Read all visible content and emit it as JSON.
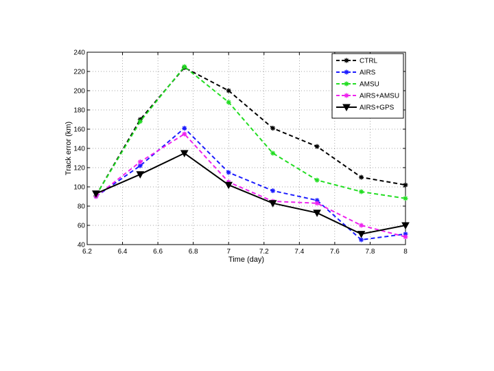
{
  "chart_data": {
    "type": "line",
    "xlabel": "Time (day)",
    "ylabel": "Track error (km)",
    "xlim": [
      6.2,
      8
    ],
    "ylim": [
      40,
      240
    ],
    "xticks": [
      6.2,
      6.4,
      6.6,
      6.8,
      7,
      7.2,
      7.4,
      7.6,
      7.8,
      8
    ],
    "yticks": [
      40,
      60,
      80,
      100,
      120,
      140,
      160,
      180,
      200,
      220,
      240
    ],
    "x": [
      6.25,
      6.5,
      6.75,
      7,
      7.25,
      7.5,
      7.75,
      8
    ],
    "grid": true,
    "legend_position": "top-right",
    "series": [
      {
        "name": "CTRL",
        "color": "#000000",
        "dash": "dashed",
        "marker": "asterisk",
        "values": [
          91,
          170,
          224,
          200,
          161,
          142,
          110,
          102
        ]
      },
      {
        "name": "AIRS",
        "color": "#1a1aff",
        "dash": "dashed",
        "marker": "asterisk",
        "values": [
          90,
          122,
          161,
          115,
          96,
          86,
          45,
          51
        ]
      },
      {
        "name": "AMSU",
        "color": "#22dd22",
        "dash": "dashed",
        "marker": "asterisk",
        "values": [
          91,
          168,
          225,
          188,
          135,
          107,
          95,
          88
        ]
      },
      {
        "name": "AIRS+AMSU",
        "color": "#ee22ee",
        "dash": "dashed",
        "marker": "asterisk",
        "values": [
          90,
          126,
          155,
          105,
          85,
          83,
          60,
          48
        ]
      },
      {
        "name": "AIRS+GPS",
        "color": "#000000",
        "dash": "solid",
        "marker": "triangle-down",
        "values": [
          93,
          113,
          135,
          102,
          83,
          73,
          51,
          60
        ]
      }
    ]
  }
}
